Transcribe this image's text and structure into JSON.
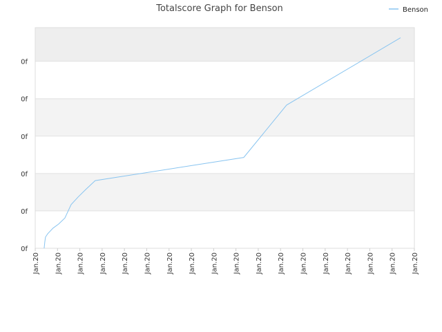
{
  "chart_data": {
    "type": "line",
    "title": "Totalscore Graph for Benson",
    "x": [
      0.4,
      0.43,
      0.46,
      0.56,
      0.8,
      1.05,
      1.33,
      1.61,
      1.92,
      2.26,
      2.69,
      9.35,
      11.27,
      16.38
    ],
    "series": [
      {
        "name": "Benson",
        "color": "#88c4f0",
        "values": [
          0,
          0.17,
          0.3,
          0.39,
          0.54,
          0.65,
          0.81,
          1.17,
          1.37,
          1.57,
          1.81,
          2.43,
          3.83,
          5.63
        ]
      }
    ],
    "xlim": [
      0,
      17
    ],
    "xticks": [
      {
        "value": 0,
        "label": "Jan.20"
      },
      {
        "value": 1,
        "label": "Jan.20"
      },
      {
        "value": 2,
        "label": "Jan.20"
      },
      {
        "value": 3,
        "label": "Jan.20"
      },
      {
        "value": 4,
        "label": "Jan.20"
      },
      {
        "value": 5,
        "label": "Jan.20"
      },
      {
        "value": 6,
        "label": "Jan.20"
      },
      {
        "value": 7,
        "label": "Jan.20"
      },
      {
        "value": 8,
        "label": "Jan.20"
      },
      {
        "value": 9,
        "label": "Jan.20"
      },
      {
        "value": 10,
        "label": "Jan.20"
      },
      {
        "value": 11,
        "label": "Jan.20"
      },
      {
        "value": 12,
        "label": "Jan.20"
      },
      {
        "value": 13,
        "label": "Jan.20"
      },
      {
        "value": 14,
        "label": "Jan.20"
      },
      {
        "value": 15,
        "label": "Jan.20"
      },
      {
        "value": 16,
        "label": "Jan.20"
      },
      {
        "value": 17,
        "label": "Jan.20"
      }
    ],
    "ylim": [
      0,
      5.9
    ],
    "yticks": [
      {
        "value": 0,
        "label": "0f"
      },
      {
        "value": 1,
        "label": "0f"
      },
      {
        "value": 2,
        "label": "0f"
      },
      {
        "value": 3,
        "label": "0f"
      },
      {
        "value": 4,
        "label": "0f"
      },
      {
        "value": 5,
        "label": "0f"
      }
    ],
    "grid": true,
    "legend": "top-right"
  }
}
